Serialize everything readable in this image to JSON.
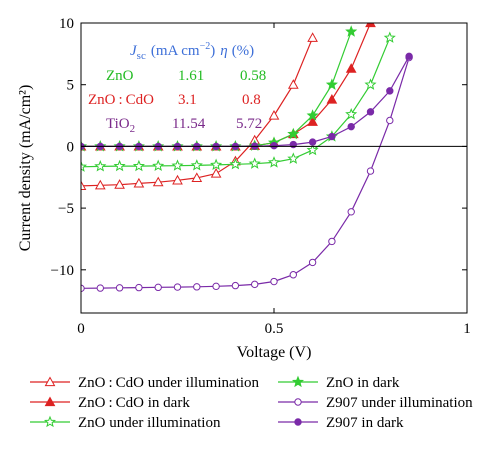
{
  "chart_data": {
    "type": "line",
    "title": "",
    "xlabel": "Voltage (V)",
    "ylabel": "Current density (mA/cm²)",
    "xlim": [
      0,
      1
    ],
    "ylim": [
      -13.5,
      10
    ],
    "xticks": [
      0,
      0.5,
      1
    ],
    "xtick_labels": [
      "0",
      "0.5",
      "1"
    ],
    "yticks": [
      10,
      5,
      0,
      -5,
      -10
    ],
    "ytick_labels": [
      "10",
      "5",
      "0",
      "−5",
      "−10"
    ],
    "grid": false,
    "zero_line": true,
    "legend_position": "bottom",
    "annotation_table": {
      "headers": [
        "J",
        "sc",
        "(mA cm",
        "−2",
        ")",
        "η",
        "(%)"
      ],
      "rows": [
        {
          "label": "ZnO",
          "jsc": "1.61",
          "eta": "0.58",
          "color": "#22bb22"
        },
        {
          "label": "ZnO : CdO",
          "jsc": "3.1",
          "eta": "0.8",
          "color": "#dd2222"
        },
        {
          "label": "TiO",
          "label_sub": "2",
          "jsc": "11.54",
          "eta": "5.72",
          "color": "#7a2a8a"
        }
      ]
    },
    "series": [
      {
        "name": "ZnO : CdO under illumination",
        "color": "#dd2222",
        "marker": "triangle-open",
        "x": [
          0,
          0.05,
          0.1,
          0.15,
          0.2,
          0.25,
          0.3,
          0.35,
          0.4,
          0.45,
          0.5,
          0.55,
          0.6
        ],
        "y": [
          -3.2,
          -3.15,
          -3.1,
          -3.0,
          -2.9,
          -2.75,
          -2.55,
          -2.2,
          -1.2,
          0.5,
          2.5,
          5.0,
          8.8
        ]
      },
      {
        "name": "ZnO : CdO in dark",
        "color": "#dd2222",
        "marker": "triangle-filled",
        "x": [
          0,
          0.05,
          0.1,
          0.15,
          0.2,
          0.25,
          0.3,
          0.35,
          0.4,
          0.45,
          0.5,
          0.55,
          0.6,
          0.65,
          0.7,
          0.75
        ],
        "y": [
          0,
          0,
          0,
          0,
          0,
          0,
          0,
          0,
          0,
          0.05,
          0.3,
          1.0,
          2.0,
          3.8,
          6.3,
          10
        ]
      },
      {
        "name": "ZnO under illumination",
        "color": "#33cc33",
        "marker": "star-open",
        "x": [
          0,
          0.05,
          0.1,
          0.15,
          0.2,
          0.25,
          0.3,
          0.35,
          0.4,
          0.45,
          0.5,
          0.55,
          0.6,
          0.65,
          0.7,
          0.75,
          0.8
        ],
        "y": [
          -1.65,
          -1.62,
          -1.6,
          -1.6,
          -1.58,
          -1.56,
          -1.54,
          -1.5,
          -1.45,
          -1.4,
          -1.3,
          -1.0,
          -0.3,
          0.8,
          2.6,
          5.0,
          8.8
        ]
      },
      {
        "name": "ZnO in dark",
        "color": "#33cc33",
        "marker": "star-filled",
        "x": [
          0,
          0.05,
          0.1,
          0.15,
          0.2,
          0.25,
          0.3,
          0.35,
          0.4,
          0.45,
          0.5,
          0.55,
          0.6,
          0.65,
          0.7
        ],
        "y": [
          0,
          0,
          0,
          0,
          0,
          0,
          0,
          0,
          0,
          0.05,
          0.3,
          1.0,
          2.5,
          5.0,
          9.3
        ]
      },
      {
        "name": "Z907 under illumination",
        "color": "#7a2aa8",
        "marker": "circle-open",
        "x": [
          0,
          0.05,
          0.1,
          0.15,
          0.2,
          0.25,
          0.3,
          0.35,
          0.4,
          0.45,
          0.5,
          0.55,
          0.6,
          0.65,
          0.7,
          0.75,
          0.8,
          0.85
        ],
        "y": [
          -11.5,
          -11.48,
          -11.46,
          -11.44,
          -11.42,
          -11.4,
          -11.38,
          -11.34,
          -11.28,
          -11.18,
          -10.95,
          -10.4,
          -9.4,
          -7.7,
          -5.3,
          -2.0,
          2.1,
          7.2
        ]
      },
      {
        "name": "Z907 in dark",
        "color": "#7a2aa8",
        "marker": "circle-filled",
        "x": [
          0,
          0.05,
          0.1,
          0.15,
          0.2,
          0.25,
          0.3,
          0.35,
          0.4,
          0.45,
          0.5,
          0.55,
          0.6,
          0.65,
          0.7,
          0.75,
          0.8,
          0.85
        ],
        "y": [
          0,
          0,
          0,
          0,
          0,
          0,
          0,
          0,
          0,
          0.02,
          0.06,
          0.15,
          0.35,
          0.8,
          1.6,
          2.8,
          4.5,
          7.3
        ]
      }
    ]
  }
}
